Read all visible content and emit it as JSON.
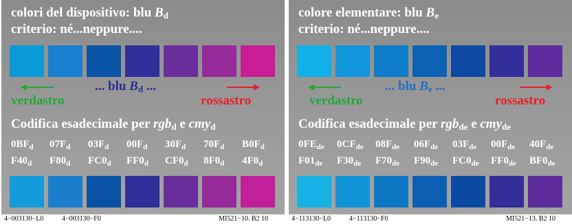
{
  "colors": {
    "green_text": "#22a83a",
    "red_text": "#e8202a",
    "heading_text": "#ffffff"
  },
  "left": {
    "heading1": {
      "prefix": "colori del dispositivo: blu ",
      "letter": "B",
      "sub": "d"
    },
    "heading2": "criterio: né...neppure....",
    "swatches_top": [
      "#0b9ad8",
      "#1a7fcf",
      "#0a55a8",
      "#30309a",
      "#6a2e9a",
      "#962a9a",
      "#c81d94"
    ],
    "swatches_bottom": [
      "#139bdb",
      "#1a7ecc",
      "#0a52a6",
      "#2e2f98",
      "#6a2e9a",
      "#962a9a",
      "#c0209a"
    ],
    "middle": {
      "prefix": "... blu ",
      "letter": "B",
      "sub": "d",
      "suffix": " ...",
      "color": "#2c2c96"
    },
    "left_label": "verdastro",
    "right_label": "rossastro",
    "codifica": {
      "prefix": "Codifica esadecimale per ",
      "rgb": "rgb",
      "rgb_sub": "d",
      "mid": " e ",
      "cmy": "cmy",
      "cmy_sub": "d"
    },
    "codes_row1": [
      {
        "v": "0BF",
        "s": "d"
      },
      {
        "v": "07F",
        "s": "d"
      },
      {
        "v": "03F",
        "s": "d"
      },
      {
        "v": "00F",
        "s": "d"
      },
      {
        "v": "30F",
        "s": "d"
      },
      {
        "v": "70F",
        "s": "d"
      },
      {
        "v": "B0F",
        "s": "d"
      }
    ],
    "codes_row2": [
      {
        "v": "F40",
        "s": "d"
      },
      {
        "v": "F80",
        "s": "d"
      },
      {
        "v": "FC0",
        "s": "d"
      },
      {
        "v": "FF0",
        "s": "d"
      },
      {
        "v": "CF0",
        "s": "d"
      },
      {
        "v": "8F0",
        "s": "d"
      },
      {
        "v": "4F0",
        "s": "d"
      }
    ],
    "footer1": "4−003130−L0",
    "footer2": "4−003130−F0",
    "footer3": "MI521−10. B2  10"
  },
  "right": {
    "heading1": {
      "prefix": "colore elementare: blu ",
      "letter": "B",
      "sub": "e"
    },
    "heading2": "criterio: né...neppure....",
    "swatches_top": [
      "#10b1e8",
      "#1296dc",
      "#0c7cc8",
      "#0c62b4",
      "#0c4aa4",
      "#342e9a",
      "#5c2c9e"
    ],
    "swatches_bottom": [
      "#16b2e6",
      "#1294d8",
      "#0c78c4",
      "#0c5fb2",
      "#0b4aa3",
      "#342e98",
      "#5c2c9c"
    ],
    "middle": {
      "prefix": "... blu ",
      "letter": "B",
      "sub": "e",
      "suffix": " ...",
      "color": "#1f6fc6"
    },
    "left_label": "verdastro",
    "right_label": "rossastro",
    "codifica": {
      "prefix": "Codifica esadecimale per ",
      "rgb": "rgb",
      "rgb_sub": "de",
      "mid": " e ",
      "cmy": "cmy",
      "cmy_sub": "de"
    },
    "codes_row1": [
      {
        "v": "0FE",
        "s": "de"
      },
      {
        "v": "0CF",
        "s": "de"
      },
      {
        "v": "08F",
        "s": "de"
      },
      {
        "v": "06F",
        "s": "de"
      },
      {
        "v": "03F",
        "s": "de"
      },
      {
        "v": "00F",
        "s": "de"
      },
      {
        "v": "40F",
        "s": "de"
      }
    ],
    "codes_row2": [
      {
        "v": "F01",
        "s": "de"
      },
      {
        "v": "F30",
        "s": "de"
      },
      {
        "v": "F70",
        "s": "de"
      },
      {
        "v": "F90",
        "s": "de"
      },
      {
        "v": "FC0",
        "s": "de"
      },
      {
        "v": "FF0",
        "s": "de"
      },
      {
        "v": "BF0",
        "s": "de"
      }
    ],
    "footer1": "4−113130−L0",
    "footer2": "4−113130−F0",
    "footer3": "MI521−13. B2  10"
  }
}
